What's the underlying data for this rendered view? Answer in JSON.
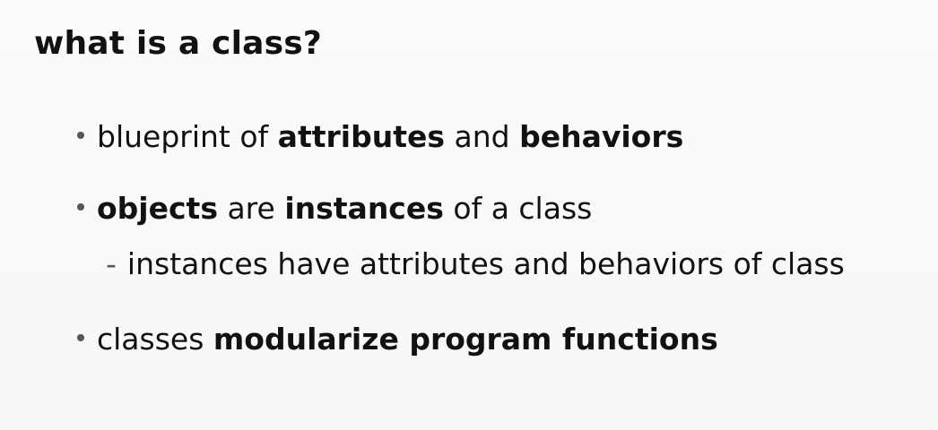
{
  "title": "what is a class?",
  "bullets": [
    {
      "segments": [
        {
          "text": "blueprint of "
        },
        {
          "text": "attributes"
        },
        {
          "text": " and "
        },
        {
          "text": "behaviors"
        }
      ]
    },
    {
      "segments": [
        {
          "text": "objects"
        },
        {
          "text": " are "
        },
        {
          "text": "instances"
        },
        {
          "text": " of a class"
        }
      ],
      "sub": {
        "marker": "-",
        "text": "instances have attributes and behaviors of class"
      }
    },
    {
      "segments": [
        {
          "text": "classes "
        },
        {
          "text": "modularize program functions"
        }
      ]
    }
  ]
}
